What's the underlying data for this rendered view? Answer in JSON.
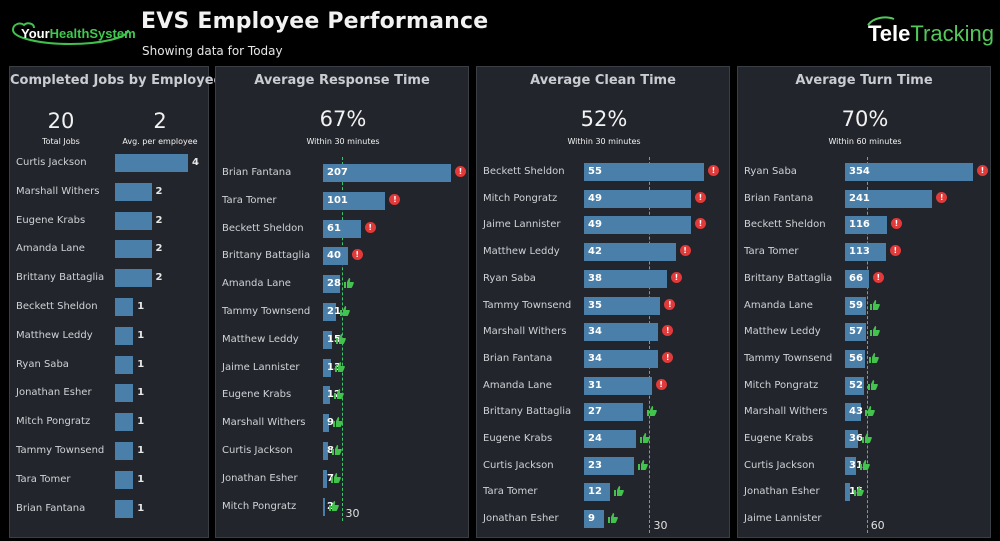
{
  "header": {
    "logo_left_main": "Your",
    "logo_left_accent": "HealthSystem",
    "title": "EVS Employee Performance",
    "subtitle": "Showing data for Today",
    "logo_right_main": "Tele",
    "logo_right_accent": "Tracking"
  },
  "colors": {
    "bar": "#4a7faa",
    "target": "#3ec46a",
    "warn": "#e03a3a",
    "good": "#44c24e",
    "panel": "#22262c"
  },
  "icons": {
    "over_target": "exclamation-alert-icon",
    "within_target": "thumbs-up-icon"
  },
  "chart_data": [
    {
      "type": "bar",
      "title": "Completed Jobs by Employee",
      "kpis": [
        {
          "value": "20",
          "label": "Total Jobs"
        },
        {
          "value": "2",
          "label": "Avg. per employee"
        }
      ],
      "categories": [
        "Curtis Jackson",
        "Marshall Withers",
        "Eugene Krabs",
        "Amanda Lane",
        "Brittany Battaglia",
        "Beckett Sheldon",
        "Matthew Leddy",
        "Ryan Saba",
        "Jonathan Esher",
        "Mitch Pongratz",
        "Tammy Townsend",
        "Tara Tomer",
        "Brian Fantana"
      ],
      "values": [
        4,
        2,
        2,
        2,
        2,
        1,
        1,
        1,
        1,
        1,
        1,
        1,
        1
      ],
      "xlim": [
        0,
        4
      ]
    },
    {
      "type": "bar",
      "title": "Average Response Time",
      "kpi": "67%",
      "kpi_label": "Within 30 minutes",
      "target": 30,
      "target_label": "30",
      "categories": [
        "Brian Fantana",
        "Tara Tomer",
        "Beckett Sheldon",
        "Brittany Battaglia",
        "Amanda Lane",
        "Tammy Townsend",
        "Matthew Leddy",
        "Jaime Lannister",
        "Eugene Krabs",
        "Marshall Withers",
        "Curtis Jackson",
        "Jonathan Esher",
        "Mitch Pongratz"
      ],
      "values": [
        207,
        101,
        61,
        40,
        28,
        21,
        15,
        13,
        12,
        9,
        8,
        7,
        2
      ],
      "xlim": [
        0,
        207
      ]
    },
    {
      "type": "bar",
      "title": "Average Clean Time",
      "kpi": "52%",
      "kpi_label": "Within 30 minutes",
      "target": 30,
      "target_label": "30",
      "categories": [
        "Beckett Sheldon",
        "Mitch Pongratz",
        "Jaime Lannister",
        "Matthew Leddy",
        "Ryan Saba",
        "Tammy Townsend",
        "Marshall Withers",
        "Brian Fantana",
        "Amanda Lane",
        "Brittany Battaglia",
        "Eugene Krabs",
        "Curtis Jackson",
        "Tara Tomer",
        "Jonathan Esher"
      ],
      "values": [
        55,
        49,
        49,
        42,
        38,
        35,
        34,
        34,
        31,
        27,
        24,
        23,
        12,
        9
      ],
      "xlim": [
        0,
        55
      ]
    },
    {
      "type": "bar",
      "title": "Average Turn Time",
      "kpi": "70%",
      "kpi_label": "Within 60 minutes",
      "target": 60,
      "target_label": "60",
      "categories": [
        "Ryan Saba",
        "Brian Fantana",
        "Beckett Sheldon",
        "Tara Tomer",
        "Brittany Battaglia",
        "Amanda Lane",
        "Matthew Leddy",
        "Tammy Townsend",
        "Mitch Pongratz",
        "Marshall Withers",
        "Eugene Krabs",
        "Curtis Jackson",
        "Jonathan Esher",
        "Jaime Lannister"
      ],
      "values": [
        354,
        241,
        116,
        113,
        66,
        59,
        57,
        56,
        52,
        43,
        36,
        31,
        15,
        null
      ],
      "xlim": [
        0,
        354
      ]
    }
  ]
}
